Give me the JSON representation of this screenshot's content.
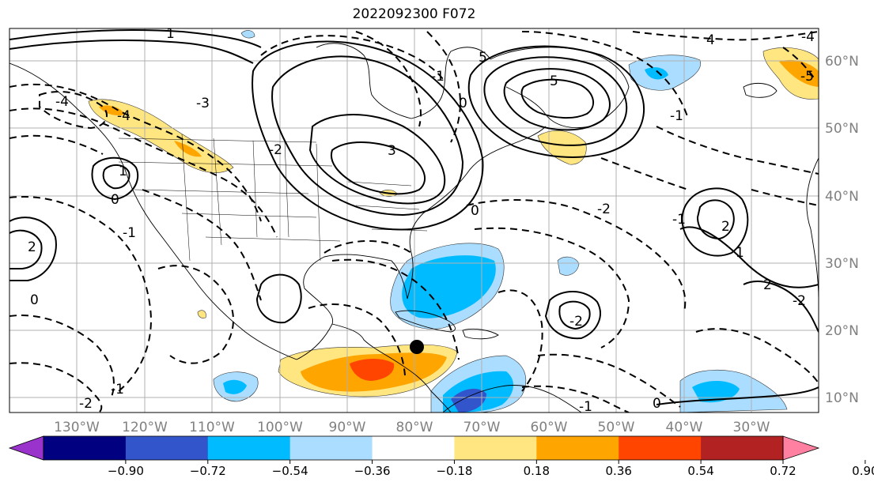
{
  "title": "2022092300 F072",
  "map": {
    "lon_labels": [
      "130°W",
      "120°W",
      "110°W",
      "100°W",
      "90°W",
      "80°W",
      "70°W",
      "60°W",
      "50°W",
      "40°W",
      "30°W"
    ],
    "lat_labels": [
      "60°N",
      "50°N",
      "40°N",
      "30°N",
      "20°N",
      "10°N"
    ],
    "marker": {
      "name": "storm-center-marker",
      "lon": -80.5,
      "lat": 17.8
    }
  },
  "contour_labels": [
    "-4",
    "-3",
    "-2",
    "-1",
    "0",
    "1",
    "2",
    "3",
    "4",
    "5",
    "-5",
    "-4",
    "-1",
    "0",
    "-1",
    "-2",
    "2",
    "-1",
    "-2",
    "0",
    "1",
    "-2",
    "2",
    "-1",
    "0",
    "-4",
    "5",
    "1",
    "-1",
    "0",
    "-2"
  ],
  "colorbar": {
    "ticks": [
      "−0.90",
      "−0.72",
      "−0.54",
      "−0.36",
      "−0.18",
      "0.18",
      "0.36",
      "0.54",
      "0.72",
      "0.90"
    ],
    "colors": [
      "#9933cc",
      "#000080",
      "#3355cc",
      "#00bbff",
      "#aaddff",
      "#ffffff",
      "#ffe680",
      "#ffa500",
      "#ff4500",
      "#b22222",
      "#ff80a0"
    ],
    "extend": "both"
  },
  "colors": {
    "gridline": "#b0b0b0",
    "coast": "#000000",
    "contour": "#000000",
    "tick_label": "#808080"
  }
}
